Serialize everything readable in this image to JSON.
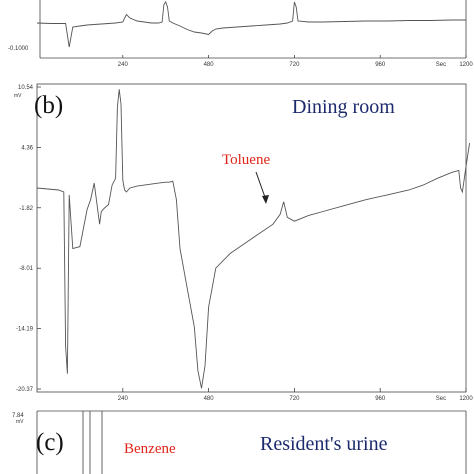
{
  "chart_data": [
    {
      "type": "line",
      "panel": "a",
      "ylabel_top": "",
      "y_tick_labels": [
        "-0.1000"
      ],
      "x_tick_labels": [
        "240",
        "480",
        "720",
        "960",
        "Sec",
        "1200"
      ],
      "xlim": [
        0,
        1200
      ],
      "series": [
        {
          "x": [
            0,
            40,
            80,
            90,
            100,
            120,
            140,
            160,
            180,
            200,
            220,
            240,
            250,
            260,
            280,
            300,
            320,
            340,
            350,
            355,
            360,
            365,
            370,
            380,
            400,
            420,
            440,
            460,
            480,
            490,
            500,
            520,
            560,
            600,
            640,
            680,
            700,
            715,
            720,
            725,
            730,
            760,
            800,
            860,
            920,
            980,
            1040,
            1100,
            1160,
            1200
          ],
          "y": [
            0.58,
            0.57,
            0.57,
            0.1,
            0.5,
            0.52,
            0.54,
            0.55,
            0.56,
            0.57,
            0.58,
            0.6,
            0.75,
            0.68,
            0.62,
            0.6,
            0.58,
            0.58,
            0.6,
            0.95,
            1.0,
            0.9,
            0.62,
            0.58,
            0.52,
            0.45,
            0.4,
            0.38,
            0.35,
            0.42,
            0.46,
            0.48,
            0.5,
            0.52,
            0.54,
            0.56,
            0.58,
            0.62,
            1.0,
            0.9,
            0.62,
            0.6,
            0.6,
            0.61,
            0.62,
            0.62,
            0.63,
            0.63,
            0.64,
            0.64
          ]
        }
      ]
    },
    {
      "type": "line",
      "panel": "b",
      "panel_label": "(b)",
      "title": "Dining room",
      "y_unit": "mV",
      "y_tick_labels": [
        "10.54",
        "4.36",
        "-1.82",
        "-8.01",
        "-14.19",
        "-20.37"
      ],
      "ylim": [
        -20.37,
        10.54
      ],
      "x_tick_labels": [
        "240",
        "480",
        "720",
        "960",
        "Sec",
        "1200"
      ],
      "xlim": [
        0,
        1200
      ],
      "annotation": "Toluene",
      "series": [
        {
          "x": [
            0,
            30,
            60,
            75,
            80,
            85,
            90,
            100,
            120,
            140,
            150,
            160,
            175,
            180,
            190,
            200,
            210,
            220,
            225,
            230,
            235,
            240,
            245,
            250,
            260,
            280,
            300,
            320,
            340,
            360,
            370,
            380,
            390,
            400,
            420,
            440,
            450,
            460,
            470,
            480,
            500,
            540,
            580,
            620,
            660,
            680,
            690,
            700,
            720,
            760,
            800,
            860,
            920,
            980,
            1040,
            1080,
            1120,
            1160,
            1180,
            1185,
            1190,
            1200,
            1210
          ],
          "y": [
            0.2,
            0.1,
            0.0,
            -0.2,
            -16.0,
            -18.8,
            -0.5,
            -6.0,
            -5.8,
            -2.0,
            -1.0,
            0.7,
            -3.5,
            -2.2,
            -1.8,
            -1.5,
            0.5,
            1.2,
            8.5,
            10.3,
            8.8,
            1.0,
            0.0,
            -0.2,
            0.2,
            0.4,
            0.5,
            0.6,
            0.7,
            0.8,
            0.8,
            0.9,
            -1.0,
            -6.0,
            -10.0,
            -14.0,
            -18.5,
            -20.3,
            -18.0,
            -12.0,
            -8.0,
            -6.5,
            -5.5,
            -4.5,
            -3.5,
            -2.5,
            -1.2,
            -2.8,
            -3.2,
            -2.6,
            -2.2,
            -1.6,
            -1.0,
            -0.5,
            0.0,
            0.5,
            1.2,
            1.8,
            2.0,
            0.2,
            -0.2,
            2.4,
            4.8
          ]
        }
      ]
    },
    {
      "type": "line",
      "panel": "c",
      "panel_label": "(c)",
      "title": "Resident's urine",
      "y_unit": "mV",
      "y_tick_labels": [
        "7.84"
      ],
      "annotation": "Benzene",
      "series": []
    }
  ]
}
